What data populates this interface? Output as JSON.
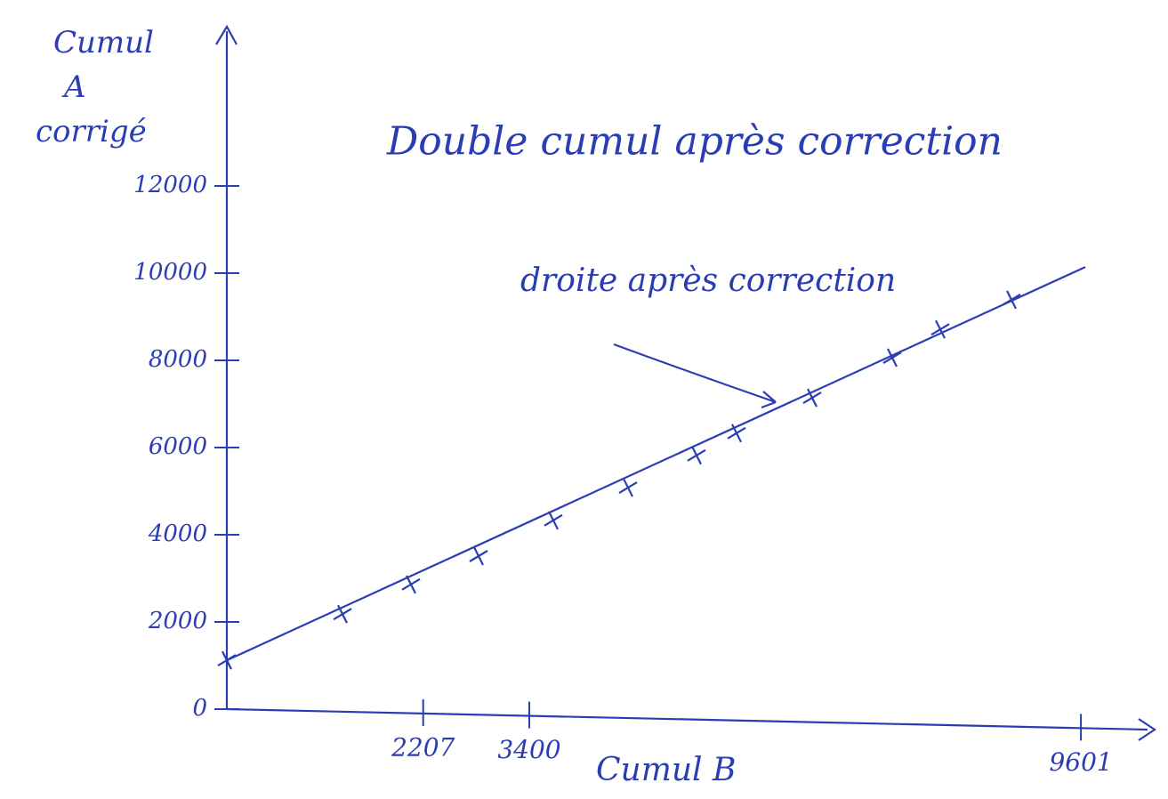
{
  "chart_data": {
    "type": "scatter",
    "title": "Double cumul après correction",
    "annotation": "droite après correction",
    "ylabel": [
      "Cumul",
      "A",
      "corrigé"
    ],
    "xlabel": "Cumul B",
    "color": "#2a3db4",
    "points": {
      "x": [
        0,
        1300,
        2070,
        2830,
        3670,
        4510,
        5280,
        5730,
        6580,
        7480,
        8020,
        8820
      ],
      "y": [
        1120,
        2180,
        2860,
        3510,
        4330,
        5080,
        5820,
        6330,
        7140,
        8060,
        8710,
        9390
      ]
    },
    "fit": {
      "x": [
        0,
        9650
      ],
      "y": [
        1120,
        10140
      ]
    },
    "xlim": [
      0,
      10350
    ],
    "ylim": [
      0,
      15550
    ],
    "xticks": [
      2207,
      3400,
      9601
    ],
    "yticks": [
      0,
      2000,
      4000,
      6000,
      8000,
      10000,
      12000
    ]
  }
}
